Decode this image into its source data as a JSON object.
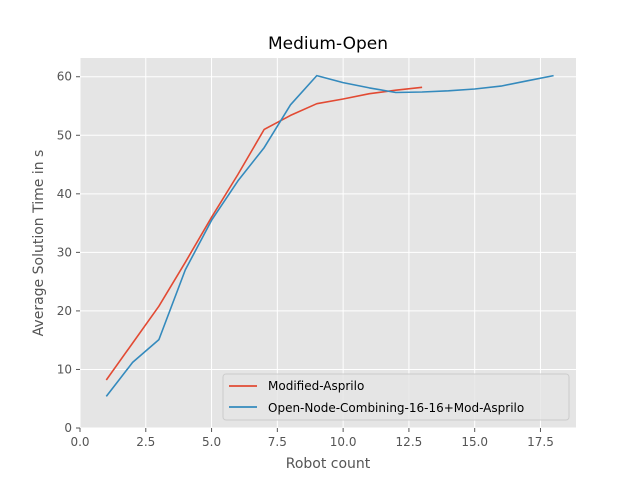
{
  "chart_data": {
    "type": "line",
    "title": "Medium-Open",
    "xlabel": "Robot count",
    "ylabel": "Average Solution Time in s",
    "xlim": [
      0.0,
      18.85
    ],
    "ylim": [
      0,
      63.2
    ],
    "xticks": [
      0.0,
      2.5,
      5.0,
      7.5,
      10.0,
      12.5,
      15.0,
      17.5
    ],
    "xtick_labels": [
      "0.0",
      "2.5",
      "5.0",
      "7.5",
      "10.0",
      "12.5",
      "15.0",
      "17.5"
    ],
    "yticks": [
      0,
      10,
      20,
      30,
      40,
      50,
      60
    ],
    "ytick_labels": [
      "0",
      "10",
      "20",
      "30",
      "40",
      "50",
      "60"
    ],
    "grid": true,
    "style": "ggplot",
    "legend_position": "lower-right",
    "series": [
      {
        "name": "Modified-Asprilo",
        "color": "#E24A33",
        "x": [
          1,
          2,
          3,
          4,
          5,
          6,
          7,
          8,
          9,
          10,
          11,
          12,
          13
        ],
        "y": [
          8.2,
          14.5,
          20.8,
          28.3,
          36.0,
          43.3,
          51.0,
          53.4,
          55.4,
          56.2,
          57.1,
          57.7,
          58.2
        ]
      },
      {
        "name": "Open-Node-Combining-16-16+Mod-Asprilo",
        "color": "#348ABD",
        "x": [
          1,
          2,
          3,
          4,
          5,
          6,
          7,
          8,
          9,
          10,
          11,
          12,
          13,
          14,
          15,
          16,
          17,
          18
        ],
        "y": [
          5.4,
          11.2,
          15.1,
          27.0,
          35.5,
          42.2,
          47.9,
          55.2,
          60.2,
          59.0,
          58.1,
          57.3,
          57.4,
          57.6,
          57.9,
          58.4,
          59.3,
          60.2
        ]
      }
    ]
  }
}
